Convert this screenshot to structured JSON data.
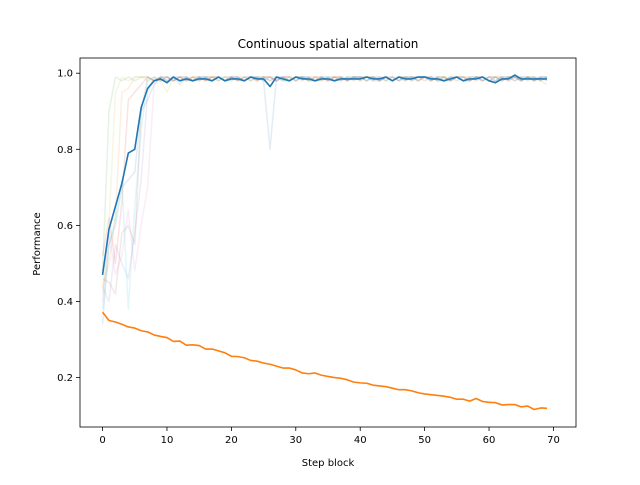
{
  "chart_data": {
    "type": "line",
    "title": "Continuous spatial alternation",
    "xlabel": "Step block",
    "ylabel": "Performance",
    "xlim": [
      -3.5,
      73.5
    ],
    "ylim": [
      0.07,
      1.04
    ],
    "xticks": [
      0,
      10,
      20,
      30,
      40,
      50,
      60,
      70
    ],
    "yticks": [
      0.2,
      0.4,
      0.6,
      0.8,
      1.0
    ],
    "ytick_labels": [
      "0.2",
      "0.4",
      "0.6",
      "0.8",
      "1.0"
    ],
    "grid": false,
    "legend": "none",
    "series": [
      {
        "color": "#1f77b4",
        "x": [
          0,
          1,
          2,
          3,
          4,
          5,
          6,
          7,
          8,
          9,
          10,
          11,
          12,
          13,
          14,
          15,
          16,
          17,
          18,
          19,
          20,
          21,
          22,
          23,
          24,
          25,
          26,
          27,
          28,
          29,
          30,
          31,
          32,
          33,
          34,
          35,
          36,
          37,
          38,
          39,
          40,
          41,
          42,
          43,
          44,
          45,
          46,
          47,
          48,
          49,
          50,
          51,
          52,
          53,
          54,
          55,
          56,
          57,
          58,
          59,
          60,
          61,
          62,
          63,
          64,
          65,
          66,
          67,
          68,
          69
        ],
        "y": [
          0.47,
          0.59,
          0.65,
          0.71,
          0.79,
          0.8,
          0.91,
          0.96,
          0.98,
          0.985,
          0.975,
          0.99,
          0.98,
          0.985,
          0.98,
          0.985,
          0.985,
          0.98,
          0.99,
          0.98,
          0.985,
          0.985,
          0.98,
          0.99,
          0.985,
          0.985,
          0.965,
          0.99,
          0.985,
          0.98,
          0.99,
          0.985,
          0.985,
          0.98,
          0.985,
          0.985,
          0.98,
          0.985,
          0.985,
          0.985,
          0.985,
          0.99,
          0.985,
          0.985,
          0.99,
          0.98,
          0.99,
          0.985,
          0.985,
          0.99,
          0.99,
          0.985,
          0.985,
          0.98,
          0.985,
          0.99,
          0.98,
          0.985,
          0.985,
          0.99,
          0.98,
          0.975,
          0.985,
          0.985,
          0.995,
          0.985,
          0.985,
          0.985,
          0.985,
          0.985
        ]
      },
      {
        "color": "#ff7f0e",
        "x": [
          0,
          1,
          2,
          3,
          4,
          5,
          6,
          7,
          8,
          9,
          10,
          11,
          12,
          13,
          14,
          15,
          16,
          17,
          18,
          19,
          20,
          21,
          22,
          23,
          24,
          25,
          26,
          27,
          28,
          29,
          30,
          31,
          32,
          33,
          34,
          35,
          36,
          37,
          38,
          39,
          40,
          41,
          42,
          43,
          44,
          45,
          46,
          47,
          48,
          49,
          50,
          51,
          52,
          53,
          54,
          55,
          56,
          57,
          58,
          59,
          60,
          61,
          62,
          63,
          64,
          65,
          66,
          67,
          68,
          69
        ],
        "y": [
          0.372,
          0.35,
          0.346,
          0.34,
          0.333,
          0.33,
          0.323,
          0.32,
          0.312,
          0.308,
          0.305,
          0.295,
          0.296,
          0.285,
          0.286,
          0.284,
          0.275,
          0.275,
          0.27,
          0.265,
          0.256,
          0.255,
          0.252,
          0.245,
          0.243,
          0.238,
          0.235,
          0.23,
          0.225,
          0.225,
          0.22,
          0.212,
          0.21,
          0.212,
          0.206,
          0.203,
          0.2,
          0.198,
          0.194,
          0.188,
          0.186,
          0.185,
          0.18,
          0.178,
          0.176,
          0.172,
          0.168,
          0.168,
          0.165,
          0.16,
          0.157,
          0.155,
          0.153,
          0.151,
          0.148,
          0.143,
          0.143,
          0.138,
          0.145,
          0.137,
          0.135,
          0.134,
          0.128,
          0.129,
          0.129,
          0.123,
          0.125,
          0.116,
          0.12,
          0.119
        ]
      }
    ],
    "background_series": [
      {
        "color": "#1f77b4",
        "y": [
          0.34,
          0.55,
          0.6,
          0.7,
          0.72,
          0.74,
          0.9,
          0.93,
          0.97,
          0.99,
          0.98,
          0.99,
          0.97,
          0.99,
          0.98,
          0.99,
          0.99,
          0.98,
          0.99,
          0.98,
          0.99,
          0.99,
          0.98,
          0.99,
          0.99,
          0.98,
          0.8,
          0.99,
          0.98,
          0.98,
          0.99,
          0.99,
          0.98,
          0.98,
          0.99,
          0.99,
          0.98,
          0.99,
          0.98,
          0.99,
          0.99,
          0.99,
          0.98,
          0.98,
          0.99,
          0.98,
          0.99,
          0.98,
          0.99,
          0.99,
          0.99,
          0.99,
          0.98,
          0.98,
          0.99,
          0.99,
          0.98,
          0.98,
          0.99,
          0.99,
          0.98,
          0.98,
          0.99,
          0.99,
          0.99,
          0.98,
          0.99,
          0.98,
          0.99,
          0.99
        ]
      },
      {
        "color": "#ff7f0e",
        "y": [
          0.44,
          0.5,
          0.62,
          0.95,
          0.96,
          0.99,
          0.99,
          0.99,
          0.98,
          0.98,
          0.99,
          0.98,
          0.99,
          0.98,
          0.99,
          0.99,
          0.98,
          0.99,
          0.99,
          0.98,
          0.99,
          0.98,
          0.99,
          0.99,
          0.98,
          0.99,
          0.99,
          0.98,
          0.99,
          0.99,
          0.98,
          0.99,
          0.98,
          0.99,
          0.99,
          0.98,
          0.99,
          0.99,
          0.98,
          0.99,
          0.99,
          0.98,
          0.99,
          0.98,
          0.99,
          0.99,
          0.98,
          0.99,
          0.99,
          0.98,
          0.99,
          0.98,
          0.99,
          0.99,
          0.98,
          0.99,
          0.99,
          0.98,
          0.99,
          0.98,
          0.99,
          0.99,
          0.98,
          0.99,
          0.99,
          0.98,
          0.99,
          0.99,
          0.98,
          0.99
        ]
      },
      {
        "color": "#2ca02c",
        "y": [
          0.48,
          0.9,
          0.99,
          0.98,
          0.99,
          0.98,
          0.99,
          0.99,
          0.98,
          0.99,
          0.98,
          0.99,
          0.99,
          0.98,
          0.99,
          0.98,
          0.99,
          0.99,
          0.98,
          0.99,
          0.99,
          0.98,
          0.99,
          0.98,
          0.99,
          0.99,
          0.98,
          0.99,
          0.99,
          0.98,
          0.99,
          0.99,
          0.98,
          0.99,
          0.98,
          0.99,
          0.99,
          0.98,
          0.99,
          0.99,
          0.98,
          0.99,
          0.99,
          0.98,
          0.99,
          0.98,
          0.99,
          0.99,
          0.98,
          0.99,
          0.99,
          0.98,
          0.99,
          0.99,
          0.98,
          0.99,
          0.98,
          0.99,
          0.99,
          0.98,
          0.99,
          0.99,
          0.98,
          0.99,
          0.98,
          0.99,
          0.99,
          0.98,
          0.99,
          0.99
        ]
      },
      {
        "color": "#d62728",
        "y": [
          0.52,
          0.62,
          0.5,
          0.66,
          0.93,
          0.95,
          0.97,
          0.99,
          0.98,
          0.99,
          0.99,
          0.98,
          0.99,
          0.99,
          0.98,
          0.99,
          0.98,
          0.99,
          0.99,
          0.98,
          0.99,
          0.99,
          0.98,
          0.99,
          0.98,
          0.99,
          0.99,
          0.98,
          0.99,
          0.99,
          0.98,
          0.99,
          0.99,
          0.98,
          0.99,
          0.98,
          0.99,
          0.99,
          0.98,
          0.99,
          0.99,
          0.98,
          0.99,
          0.99,
          0.98,
          0.99,
          0.98,
          0.99,
          0.99,
          0.98,
          0.99,
          0.99,
          0.98,
          0.99,
          0.98,
          0.99,
          0.99,
          0.98,
          0.99,
          0.99,
          0.98,
          0.99,
          0.99,
          0.98,
          0.99,
          0.98,
          0.99,
          0.99,
          0.98,
          0.99
        ]
      },
      {
        "color": "#9467bd",
        "y": [
          0.44,
          0.4,
          0.55,
          0.5,
          0.46,
          0.58,
          0.72,
          0.95,
          0.99,
          0.98,
          0.99,
          0.98,
          0.99,
          0.99,
          0.98,
          0.99,
          0.99,
          0.98,
          0.99,
          0.98,
          0.99,
          0.99,
          0.98,
          0.99,
          0.99,
          0.98,
          0.99,
          0.98,
          0.99,
          0.99,
          0.98,
          0.99,
          0.99,
          0.98,
          0.99,
          0.98,
          0.99,
          0.99,
          0.98,
          0.99,
          0.99,
          0.98,
          0.99,
          0.98,
          0.99,
          0.99,
          0.98,
          0.99,
          0.99,
          0.98,
          0.99,
          0.98,
          0.99,
          0.99,
          0.98,
          0.99,
          0.99,
          0.98,
          0.99,
          0.98,
          0.99,
          0.99,
          0.98,
          0.99,
          0.99,
          0.98,
          0.99,
          0.98,
          0.99,
          0.99
        ]
      },
      {
        "color": "#8c564b",
        "y": [
          0.46,
          0.45,
          0.42,
          0.58,
          0.6,
          0.55,
          0.9,
          0.99,
          0.98,
          0.99,
          0.99,
          0.98,
          0.99,
          0.98,
          0.99,
          0.99,
          0.98,
          0.99,
          0.99,
          0.98,
          0.99,
          0.98,
          0.99,
          0.99,
          0.98,
          0.99,
          0.99,
          0.98,
          0.99,
          0.98,
          0.99,
          0.99,
          0.98,
          0.99,
          0.99,
          0.98,
          0.99,
          0.98,
          0.99,
          0.99,
          0.98,
          0.99,
          0.99,
          0.98,
          0.99,
          0.98,
          0.99,
          0.99,
          0.98,
          0.99,
          0.99,
          0.98,
          0.99,
          0.98,
          0.99,
          0.99,
          0.98,
          0.99,
          0.99,
          0.98,
          0.99,
          0.98,
          0.99,
          0.99,
          0.98,
          0.99,
          0.99,
          0.98,
          0.99,
          0.98
        ]
      },
      {
        "color": "#e377c2",
        "y": [
          0.4,
          0.58,
          0.47,
          0.52,
          0.64,
          0.48,
          0.6,
          0.7,
          0.97,
          0.99,
          0.98,
          0.99,
          0.99,
          0.98,
          0.99,
          0.98,
          0.99,
          0.99,
          0.98,
          0.99,
          0.99,
          0.98,
          0.99,
          0.98,
          0.99,
          0.99,
          0.98,
          0.99,
          0.99,
          0.98,
          0.99,
          0.98,
          0.99,
          0.99,
          0.98,
          0.99,
          0.99,
          0.98,
          0.99,
          0.98,
          0.99,
          0.99,
          0.98,
          0.99,
          0.99,
          0.98,
          0.99,
          0.98,
          0.99,
          0.99,
          0.98,
          0.99,
          0.99,
          0.98,
          0.99,
          0.98,
          0.99,
          0.99,
          0.98,
          0.99,
          0.99,
          0.98,
          0.99,
          0.98,
          0.99,
          0.99,
          0.98,
          0.99,
          0.99,
          0.98
        ]
      },
      {
        "color": "#bcbd22",
        "y": [
          0.42,
          0.6,
          0.95,
          0.99,
          0.98,
          0.99,
          0.99,
          0.98,
          0.99,
          0.98,
          0.95,
          0.99,
          0.98,
          0.99,
          0.99,
          0.98,
          0.99,
          0.99,
          0.98,
          0.99,
          0.98,
          0.99,
          0.99,
          0.98,
          0.99,
          0.99,
          0.98,
          0.99,
          0.98,
          0.99,
          0.99,
          0.98,
          0.99,
          0.99,
          0.98,
          0.99,
          0.98,
          0.99,
          0.99,
          0.98,
          0.99,
          0.99,
          0.98,
          0.99,
          0.98,
          0.99,
          0.99,
          0.98,
          0.99,
          0.99,
          0.98,
          0.99,
          0.98,
          0.99,
          0.99,
          0.98,
          0.99,
          0.99,
          0.98,
          0.99,
          0.98,
          0.99,
          0.99,
          0.98,
          0.99,
          0.99,
          0.98,
          0.99,
          0.98,
          0.99
        ]
      },
      {
        "color": "#17becf",
        "y": [
          0.38,
          0.55,
          0.62,
          0.72,
          0.38,
          0.65,
          0.85,
          0.98,
          0.99,
          0.98,
          0.99,
          0.99,
          0.98,
          0.99,
          0.98,
          0.99,
          0.99,
          0.98,
          0.99,
          0.99,
          0.98,
          0.99,
          0.98,
          0.99,
          0.99,
          0.98,
          0.99,
          0.99,
          0.98,
          0.99,
          0.98,
          0.99,
          0.99,
          0.98,
          0.99,
          0.99,
          0.98,
          0.99,
          0.98,
          0.99,
          0.99,
          0.98,
          0.99,
          0.99,
          0.98,
          0.99,
          0.98,
          0.99,
          0.99,
          0.98,
          0.99,
          0.99,
          0.98,
          0.99,
          0.98,
          0.99,
          0.99,
          0.98,
          0.99,
          0.99,
          0.98,
          0.99,
          0.98,
          0.99,
          0.99,
          0.98,
          0.99,
          0.99,
          0.98,
          0.97
        ]
      }
    ]
  }
}
